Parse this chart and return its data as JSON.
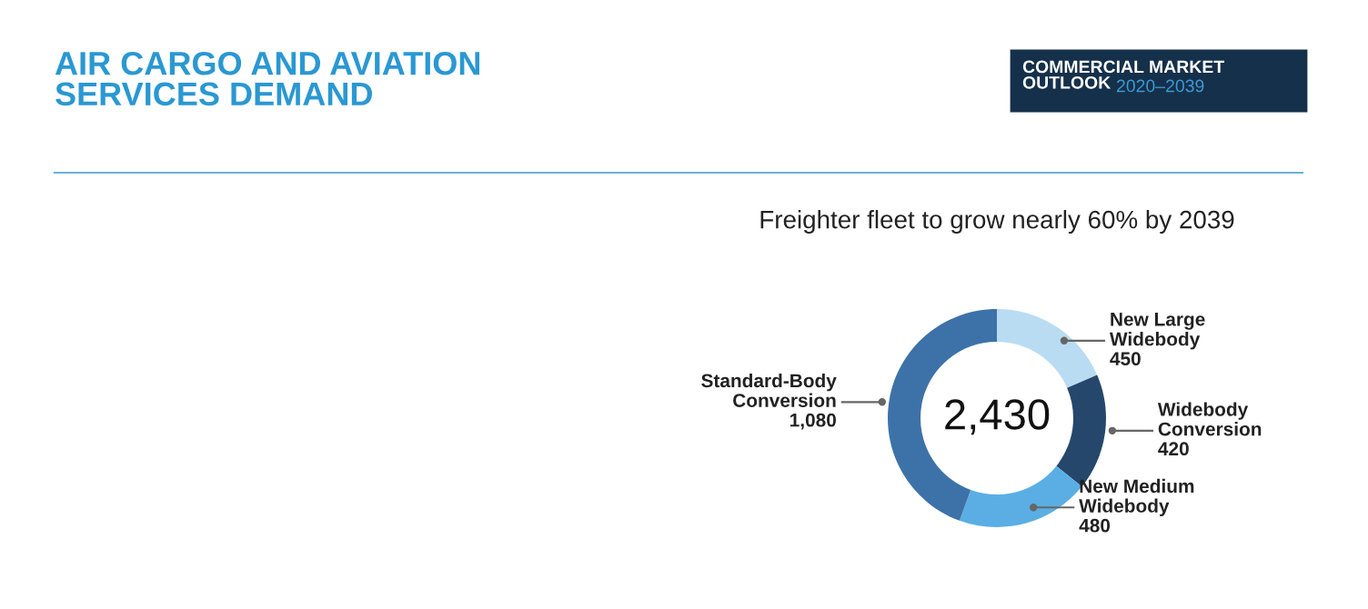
{
  "chart_data": {
    "type": "donut",
    "title": "AIR CARGO AND AVIATION\nSERVICES DEMAND",
    "subtitle": "Freighter fleet to grow nearly 60% by 2039",
    "categories": [
      "New Large\nWidebody",
      "Widebody\nConversion",
      "New Medium\nWidebody",
      "Standard-Body\nConversion"
    ],
    "values": [
      450,
      420,
      480,
      1080
    ],
    "value_labels": [
      "450",
      "420",
      "480",
      "1,080"
    ],
    "colors": [
      "#b9dcf2",
      "#25476b",
      "#5aaee4",
      "#3d72a8"
    ],
    "annotations": [
      "2,430",
      "COMMERCIAL MARKET\nOUTLOOK 2020–2039"
    ]
  }
}
